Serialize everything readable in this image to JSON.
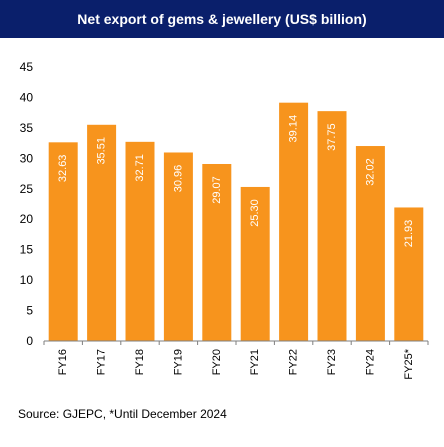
{
  "title": "Net export of gems & jewellery (US$ billion)",
  "source": "Source: GJEPC, *Until December 2024",
  "colors": {
    "title_bg": "#0a1f6b",
    "bar": "#f7941d",
    "bar_label": "#ffffff"
  },
  "chart_data": {
    "type": "bar",
    "title": "Net export of gems & jewellery (US$ billion)",
    "xlabel": "",
    "ylabel": "",
    "categories": [
      "FY16",
      "FY17",
      "FY18",
      "FY19",
      "FY20",
      "FY21",
      "FY22",
      "FY23",
      "FY24",
      "FY25*"
    ],
    "values": [
      32.63,
      35.51,
      32.71,
      30.96,
      29.07,
      25.3,
      39.14,
      37.75,
      32.02,
      21.93
    ],
    "value_labels": [
      "32.63",
      "35.51",
      "32.71",
      "30.96",
      "29.07",
      "25.30",
      "39.14",
      "37.75",
      "32.02",
      "21.93"
    ],
    "ylim": [
      0,
      45
    ],
    "yticks": [
      "0",
      "5",
      "10",
      "15",
      "20",
      "25",
      "30",
      "35",
      "40",
      "45"
    ],
    "grid": false,
    "legend": "none"
  }
}
